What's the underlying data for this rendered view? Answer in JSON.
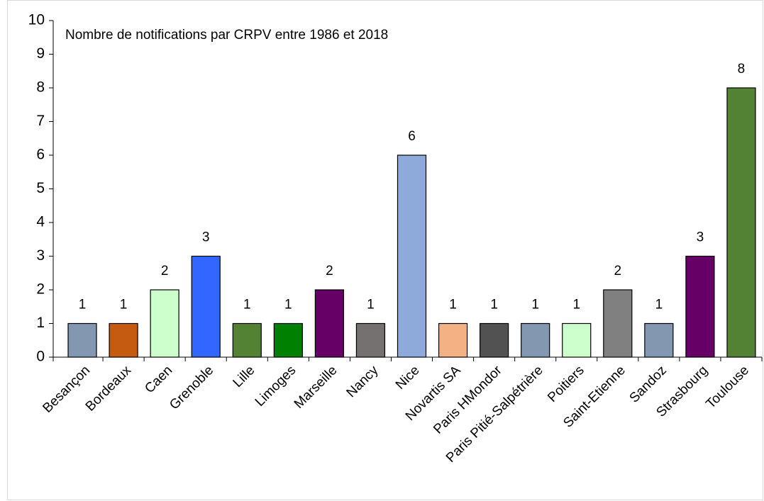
{
  "chart_data": {
    "type": "bar",
    "title": "Nombre de notifications par CRPV entre 1986 et 2018",
    "categories": [
      "Besançon",
      "Bordeaux",
      "Caen",
      "Grenoble",
      "Lille",
      "Limoges",
      "Marseille",
      "Nancy",
      "Nice",
      "Novartis SA",
      "Paris HMondor",
      "Paris Pitié-Salpétrière",
      "Poitiers",
      "Saint-Etienne",
      "Sandoz",
      "Strasbourg",
      "Toulouse"
    ],
    "values": [
      1,
      1,
      2,
      3,
      1,
      1,
      2,
      1,
      6,
      1,
      1,
      1,
      1,
      2,
      1,
      3,
      8
    ],
    "colors": [
      "#8497b0",
      "#c55a11",
      "#ccffcc",
      "#3366ff",
      "#548235",
      "#008000",
      "#660066",
      "#767171",
      "#8eaadb",
      "#f4b183",
      "#525252",
      "#8497b0",
      "#ccffcc",
      "#808080",
      "#8497b0",
      "#660066",
      "#548235"
    ],
    "ylim": [
      0,
      10
    ],
    "yticks": [
      0,
      1,
      2,
      3,
      4,
      5,
      6,
      7,
      8,
      9,
      10
    ],
    "grid": false
  }
}
